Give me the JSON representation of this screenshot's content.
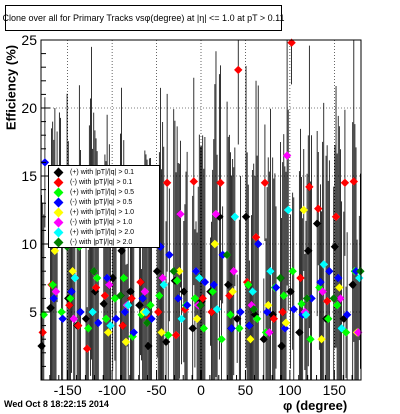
{
  "title": "Clone over all for Primary Tracks vsφ(degree) at |η| <= 1.0 at pT > 0.11",
  "timestamp": "Wed Oct  8 18:22:15 2014",
  "xlabel": "φ (degree)",
  "ylabel": "Efficiency (%)",
  "legend": [
    {
      "label": "(+) with |pT|/|q| > 0.1",
      "color": "#000000"
    },
    {
      "label": "(-) with |pT|/|q| > 0.1",
      "color": "#ff0000"
    },
    {
      "label": "(+) with |pT|/|q| > 0.5",
      "color": "#00ff00"
    },
    {
      "label": "(-) with |pT|/|q| > 0.5",
      "color": "#0000ff"
    },
    {
      "label": "(+) with |pT|/|q| > 1.0",
      "color": "#ffff00"
    },
    {
      "label": "(-) with |pT|/|q| > 1.0",
      "color": "#ff00ff"
    },
    {
      "label": "(+) with |pT|/|q| > 2.0",
      "color": "#00ffff"
    },
    {
      "label": "(-) with |pT|/|q| > 2.0",
      "color": "#008000"
    }
  ],
  "chart_data": {
    "type": "scatter",
    "title": "Clone over all for Primary Tracks vsφ(degree) at |η| <= 1.0 at pT > 0.11",
    "xlabel": "φ (degree)",
    "ylabel": "Efficiency (%)",
    "xlim": [
      -180,
      180
    ],
    "ylim": [
      0,
      25
    ],
    "x_ticks": [
      -150,
      -100,
      -50,
      0,
      50,
      100,
      150
    ],
    "y_ticks": [
      5,
      10,
      15,
      20,
      25
    ],
    "grid": true,
    "legend_position": "left-middle",
    "marker": "diamond",
    "series": [
      {
        "name": "(+) with |pT|/|q| > 0.1",
        "color": "#000000",
        "x": [
          -175,
          -165,
          -155,
          -145,
          -135,
          -125,
          -115,
          -105,
          -95,
          -85,
          -75,
          -65,
          -55,
          -45,
          -35,
          -25,
          -15,
          -5,
          5,
          15,
          25,
          35,
          45,
          55,
          65,
          75,
          85,
          95,
          105,
          115,
          125,
          135,
          145,
          155,
          165,
          175
        ],
        "y": [
          2.5,
          5.3,
          15.2,
          6.0,
          4.0,
          4.5,
          6.5,
          5.6,
          7.5,
          9.5,
          6.5,
          5.5,
          2.5,
          8.0,
          2.8,
          7.3,
          6.5,
          3.8,
          5.8,
          6.5,
          12.0,
          7.0,
          4.5,
          12.0,
          4.8,
          3.0,
          4.8,
          2.5,
          6.5,
          3.5,
          9.5,
          11.5,
          4.5,
          9.8,
          4.5,
          7.0
        ]
      },
      {
        "name": "(-) with |pT|/|q| > 0.1",
        "color": "#ff0000",
        "x": [
          -175,
          -165,
          -155,
          -145,
          -135,
          -125,
          -115,
          -105,
          -95,
          -85,
          -75,
          -65,
          -55,
          -45,
          -35,
          -25,
          -15,
          -5,
          5,
          15,
          25,
          35,
          45,
          55,
          65,
          75,
          85,
          95,
          105,
          115,
          125,
          135,
          145,
          155,
          165,
          175
        ],
        "y": [
          3.5,
          7.0,
          15.0,
          5.5,
          4.0,
          2.3,
          6.8,
          6.2,
          10.0,
          4.0,
          6.0,
          7.2,
          4.5,
          5.0,
          14.5,
          3.3,
          5.2,
          14.6,
          6.0,
          5.0,
          14.5,
          6.2,
          22.8,
          7.2,
          10.5,
          14.5,
          4.5,
          5.0,
          24.8,
          7.5,
          14.2,
          12.6,
          5.8,
          12.0,
          14.5,
          14.6
        ]
      },
      {
        "name": "(+) with |pT|/|q| > 0.5",
        "color": "#00ff00",
        "x": [
          -175,
          -165,
          -155,
          -145,
          -135,
          -125,
          -115,
          -105,
          -95,
          -85,
          -75,
          -65,
          -55,
          -45,
          -35,
          -25,
          -15,
          -5,
          5,
          15,
          25,
          35,
          45,
          55,
          65,
          75,
          85,
          95,
          105,
          115,
          125,
          135,
          145,
          155,
          165,
          175
        ],
        "y": [
          4.8,
          7.0,
          5.0,
          6.0,
          9.8,
          3.8,
          7.5,
          4.5,
          6.0,
          7.5,
          3.2,
          4.8,
          5.5,
          6.2,
          3.3,
          7.3,
          5.5,
          6.0,
          3.8,
          6.5,
          3.0,
          4.8,
          3.8,
          7.0,
          4.5,
          3.5,
          6.8,
          6.2,
          8.0,
          5.6,
          3.0,
          6.8,
          4.5,
          5.5,
          3.5,
          8.0
        ]
      },
      {
        "name": "(-) with |pT|/|q| > 0.5",
        "color": "#0000ff",
        "x": [
          -175,
          -165,
          -155,
          -145,
          -135,
          -125,
          -115,
          -105,
          -95,
          -85,
          -75,
          -65,
          -55,
          -45,
          -35,
          -25,
          -15,
          -5,
          5,
          15,
          25,
          35,
          45,
          55,
          65,
          75,
          85,
          95,
          105,
          115,
          125,
          135,
          145,
          155,
          165,
          175
        ],
        "y": [
          16.0,
          6.0,
          4.5,
          6.5,
          5.0,
          10.5,
          4.2,
          7.5,
          4.5,
          5.0,
          3.5,
          6.0,
          4.5,
          9.8,
          9.2,
          6.0,
          5.5,
          8.0,
          7.2,
          7.0,
          9.2,
          3.8,
          5.0,
          4.0,
          10.0,
          5.0,
          6.8,
          3.8,
          5.2,
          4.8,
          6.0,
          7.2,
          8.0,
          7.5,
          4.8,
          8.0
        ]
      },
      {
        "name": "(+) with |pT|/|q| > 1.0",
        "color": "#ffff00",
        "x": [
          -165,
          -145,
          -125,
          -105,
          -85,
          -65,
          -45,
          -25,
          -5,
          15,
          35,
          55,
          75,
          95,
          115,
          135,
          155,
          175
        ],
        "y": [
          9.5,
          8.0,
          10.5,
          3.5,
          2.8,
          5.0,
          3.5,
          8.0,
          4.5,
          10.0,
          6.5,
          3.0,
          5.5,
          4.2,
          12.5,
          3.0,
          6.8,
          3.5
        ]
      },
      {
        "name": "(-) with |pT|/|q| > 1.0",
        "color": "#ff00ff",
        "x": [
          -165,
          -145,
          -125,
          -105,
          -85,
          -65,
          -45,
          -25,
          -5,
          15,
          35,
          55,
          75,
          95,
          115,
          135,
          155,
          175
        ],
        "y": [
          6.5,
          4.5,
          13.0,
          7.0,
          5.5,
          6.5,
          7.5,
          12.2,
          5.5,
          12.2,
          8.0,
          5.5,
          3.5,
          16.5,
          5.0,
          6.5,
          6.0,
          3.5
        ]
      },
      {
        "name": "(+) with |pT|/|q| > 2.0",
        "color": "#00ffff",
        "x": [
          -165,
          -145,
          -125,
          -105,
          -85,
          -65,
          -45,
          -25,
          -5,
          15,
          35,
          55,
          75,
          95,
          115,
          135,
          155,
          175
        ],
        "y": [
          12.0,
          7.5,
          5.0,
          4.0,
          5.5,
          5.0,
          7.0,
          4.5,
          7.5,
          5.2,
          12.0,
          6.5,
          8.0,
          12.5,
          4.8,
          8.5,
          3.8,
          7.5
        ]
      },
      {
        "name": "(-) with |pT|/|q| > 2.0",
        "color": "#008000",
        "x": [
          -155,
          -125,
          -95,
          -65,
          -35,
          -5,
          25,
          55,
          85,
          115,
          145,
          175
        ],
        "y": [
          9.8,
          8.0,
          6.2,
          4.2,
          8.0,
          5.5,
          9.2,
          5.2,
          7.5,
          6.0,
          6.0,
          8.0
        ]
      }
    ]
  }
}
